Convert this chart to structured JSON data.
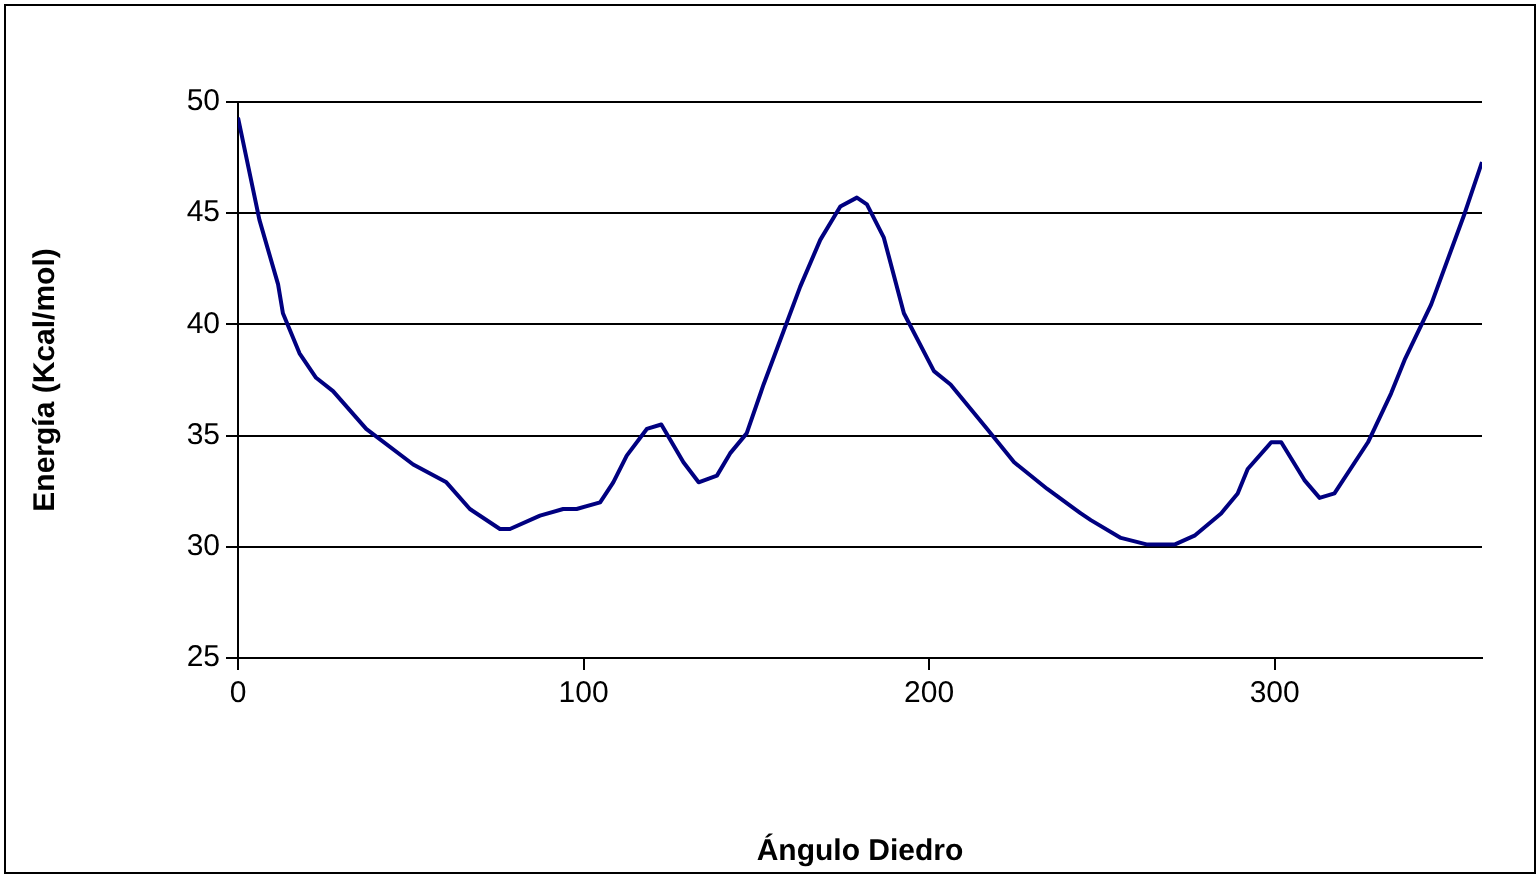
{
  "chart_data": {
    "type": "line",
    "xlabel": "Ángulo Diedro",
    "ylabel": "Energía (Kcal/mol)",
    "x": [
      0,
      6.2,
      11.6,
      13,
      17.8,
      22.6,
      27.5,
      37.1,
      50.7,
      60.3,
      67.1,
      75.8,
      78.7,
      87.4,
      94.1,
      98,
      104.8,
      108.6,
      112.5,
      118.3,
      122.5,
      128.9,
      133.3,
      138.6,
      142.4,
      147.2,
      152.1,
      157.9,
      162.7,
      168.5,
      174.3,
      179.1,
      182,
      186.9,
      192.7,
      201.4,
      206.2,
      216.8,
      224.6,
      234.2,
      243.9,
      246.8,
      255.5,
      263.2,
      271,
      276.8,
      284.5,
      289.3,
      292.2,
      299,
      301.9,
      308.6,
      313,
      317.3,
      327,
      333.7,
      337.6,
      345.3,
      355,
      360
    ],
    "series": [
      {
        "color": "#000080",
        "values": [
          49.3,
          44.7,
          41.8,
          40.5,
          38.7,
          37.6,
          37.0,
          35.3,
          33.7,
          32.9,
          31.7,
          30.8,
          30.8,
          31.4,
          31.7,
          31.7,
          32.0,
          32.9,
          34.1,
          35.3,
          35.5,
          33.8,
          32.9,
          33.2,
          34.2,
          35.1,
          37.3,
          39.7,
          41.7,
          43.8,
          45.3,
          45.7,
          45.4,
          43.9,
          40.5,
          37.9,
          37.3,
          35.3,
          33.8,
          32.6,
          31.5,
          31.2,
          30.4,
          30.1,
          30.1,
          30.5,
          31.5,
          32.4,
          33.5,
          34.7,
          34.7,
          33.0,
          32.2,
          32.4,
          34.7,
          36.9,
          38.4,
          40.9,
          45.0,
          47.3
        ]
      }
    ],
    "xlim": [
      0,
      360
    ],
    "xticks": [
      0,
      100,
      200,
      300
    ],
    "ylim": [
      25,
      50
    ],
    "yticks": [
      25,
      30,
      35,
      40,
      45,
      50
    ],
    "grid": "y",
    "legend": false,
    "marker": "none",
    "line_style": "solid"
  }
}
